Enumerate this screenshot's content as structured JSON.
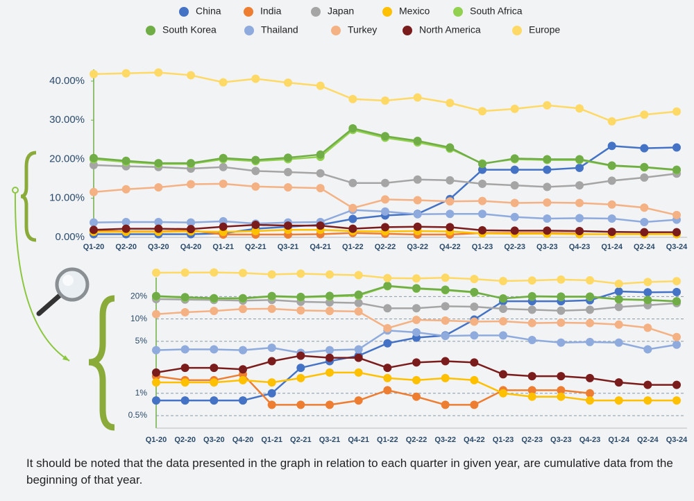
{
  "chart_data": [
    {
      "type": "line",
      "categories": [
        "Q1-20",
        "Q2-20",
        "Q3-20",
        "Q4-20",
        "Q1-21",
        "Q2-21",
        "Q3-21",
        "Q4-21",
        "Q1-22",
        "Q2-22",
        "Q3-22",
        "Q4-22",
        "Q1-23",
        "Q2-23",
        "Q3-23",
        "Q4-23",
        "Q1-24",
        "Q2-24",
        "Q3-24"
      ],
      "ylim": [
        0,
        43
      ],
      "yticks": [
        {
          "value": 0,
          "label": "0.00%"
        },
        {
          "value": 10,
          "label": "10.00%"
        },
        {
          "value": 20,
          "label": "20.00%"
        },
        {
          "value": 30,
          "label": "30.00%"
        },
        {
          "value": 40,
          "label": "40.00%"
        }
      ],
      "grid": false,
      "log_scale": false,
      "series": [
        {
          "name": "China",
          "color": "#4472c4",
          "values": [
            0.8,
            0.8,
            0.8,
            0.8,
            1.0,
            2.2,
            2.7,
            3.2,
            4.7,
            5.6,
            6.0,
            9.8,
            17.3,
            17.3,
            17.3,
            17.8,
            23.4,
            22.8,
            23.0
          ]
        },
        {
          "name": "India",
          "color": "#ed7d31",
          "values": [
            1.7,
            1.5,
            1.5,
            1.8,
            0.7,
            0.7,
            0.7,
            0.8,
            1.1,
            0.9,
            0.7,
            0.7,
            1.1,
            1.1,
            1.1,
            1.0,
            null,
            null,
            null
          ]
        },
        {
          "name": "Japan",
          "color": "#a5a5a5",
          "values": [
            18.5,
            18.2,
            18.0,
            17.6,
            18.0,
            17.0,
            16.7,
            16.4,
            13.9,
            13.9,
            14.8,
            14.6,
            13.7,
            13.3,
            12.9,
            13.3,
            14.5,
            15.3,
            16.3
          ]
        },
        {
          "name": "Mexico",
          "color": "#ffc000",
          "values": [
            1.4,
            1.4,
            1.4,
            1.5,
            1.4,
            1.6,
            1.9,
            1.9,
            1.6,
            1.5,
            1.6,
            1.5,
            1.0,
            0.9,
            0.9,
            0.8,
            0.8,
            0.8,
            0.8
          ]
        },
        {
          "name": "South Africa",
          "color": "#92d050",
          "values": [
            20.0,
            19.3,
            18.8,
            18.8,
            20.0,
            19.5,
            20.0,
            20.6,
            27.5,
            25.5,
            24.3,
            22.7,
            18.9,
            20.0,
            19.8,
            19.8,
            18.3,
            17.9,
            17.2
          ]
        },
        {
          "name": "South Korea",
          "color": "#70ad47",
          "values": [
            20.3,
            19.6,
            19.0,
            19.0,
            20.3,
            19.8,
            20.4,
            21.2,
            27.9,
            25.9,
            24.7,
            23.0,
            18.8,
            20.2,
            20.0,
            20.0,
            18.4,
            18.0,
            17.3
          ]
        },
        {
          "name": "Thailand",
          "color": "#8faadc",
          "values": [
            3.8,
            3.9,
            3.9,
            3.8,
            4.1,
            3.5,
            3.8,
            3.9,
            7.0,
            6.6,
            5.9,
            6.0,
            6.0,
            5.2,
            4.8,
            4.9,
            4.8,
            3.9,
            4.5
          ]
        },
        {
          "name": "Turkey",
          "color": "#f4b183",
          "values": [
            11.6,
            12.3,
            12.8,
            13.6,
            13.7,
            13.0,
            12.8,
            12.6,
            7.5,
            9.7,
            9.5,
            9.2,
            9.3,
            8.8,
            8.9,
            8.8,
            8.4,
            7.6,
            5.7
          ]
        },
        {
          "name": "North America",
          "color": "#7b1c1c",
          "values": [
            1.9,
            2.2,
            2.2,
            2.1,
            2.7,
            3.2,
            3.0,
            3.0,
            2.2,
            2.6,
            2.7,
            2.6,
            1.8,
            1.7,
            1.7,
            1.6,
            1.4,
            1.3,
            1.3
          ]
        },
        {
          "name": "Europe",
          "color": "#ffd966",
          "values": [
            41.8,
            42.0,
            42.2,
            41.5,
            39.7,
            40.6,
            39.6,
            38.8,
            35.4,
            35.0,
            35.8,
            34.4,
            32.3,
            32.9,
            33.8,
            33.0,
            29.7,
            31.4,
            32.2
          ]
        }
      ]
    },
    {
      "type": "line",
      "ylim": [
        0.34,
        36
      ],
      "yticks": [
        {
          "value": 0.5,
          "label": "0.5%"
        },
        {
          "value": 1,
          "label": "1%"
        },
        {
          "value": 5,
          "label": "5%"
        },
        {
          "value": 10,
          "label": "10%"
        },
        {
          "value": 20,
          "label": "20%"
        }
      ],
      "grid": true,
      "log_scale": true
    }
  ],
  "note": "It should be noted that the data presented in the graph in relation to each quarter in given year, are cumulative data from the beginning of that year."
}
